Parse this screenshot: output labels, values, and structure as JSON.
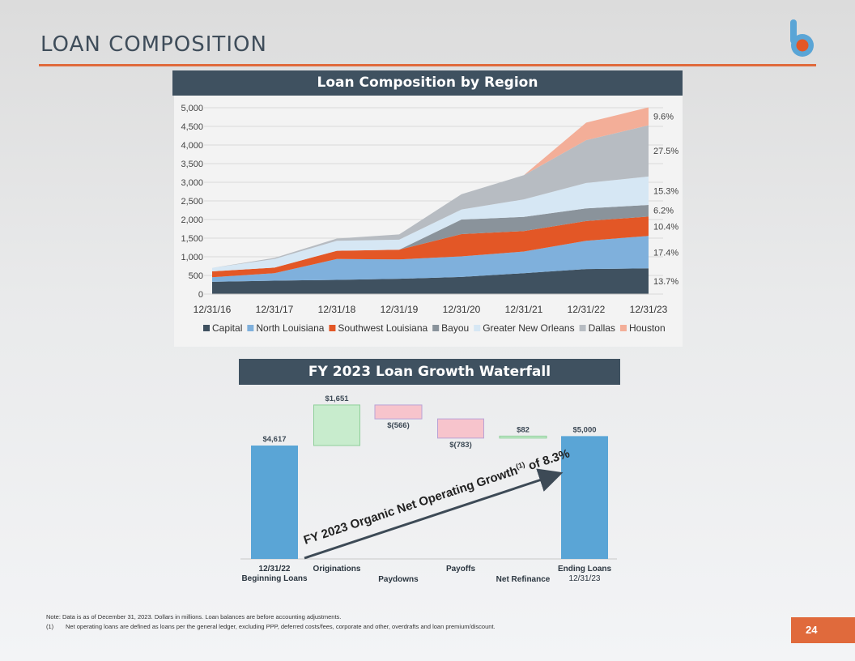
{
  "page": {
    "title": "LOAN COMPOSITION",
    "page_number": "24",
    "notes": {
      "line1": "Note: Data is as of December 31, 2023. Dollars in millions. Loan balances are before accounting adjustments.",
      "line2_marker": "(1)",
      "line2": "Net operating loans are defined as loans per the general ledger, excluding PPP, deferred costs/fees, corporate and other, overdrafts and loan premium/discount."
    }
  },
  "colors": {
    "accent": "#e06a3c",
    "header_bg": "#3f5160",
    "Capital": "#3f5160",
    "North Louisiana": "#7fb0dc",
    "Southwest Louisiana": "#e35726",
    "Bayou": "#8a939b",
    "Greater New Orleans": "#d6e7f4",
    "Dallas": "#b7bcc2",
    "Houston": "#f3ae98",
    "wf_total": "#5aa5d6",
    "wf_increase": "#c8eccd",
    "wf_decrease": "#f7c4cc",
    "arrow": "#3d4a56"
  },
  "chart_data": [
    {
      "type": "area",
      "stacked": true,
      "title": "Loan Composition by Region",
      "x": [
        "12/31/16",
        "12/31/17",
        "12/31/18",
        "12/31/19",
        "12/31/20",
        "12/31/21",
        "12/31/22",
        "12/31/23"
      ],
      "ylim": [
        0,
        5000
      ],
      "yticks": [
        "5,000",
        "4,500",
        "4,000",
        "3,500",
        "3,000",
        "2,500",
        "2,000",
        "1,500",
        "1,000",
        "500",
        "0"
      ],
      "grid": true,
      "legend_position": "bottom",
      "series": [
        {
          "name": "Capital",
          "values": [
            330,
            360,
            380,
            410,
            460,
            560,
            670,
            690
          ]
        },
        {
          "name": "North Louisiana",
          "values": [
            120,
            200,
            560,
            520,
            550,
            580,
            760,
            870
          ]
        },
        {
          "name": "Southwest Louisiana",
          "values": [
            160,
            150,
            220,
            260,
            600,
            550,
            530,
            520
          ]
        },
        {
          "name": "Bayou",
          "values": [
            0,
            0,
            0,
            0,
            390,
            380,
            340,
            310
          ]
        },
        {
          "name": "Greater New Orleans",
          "values": [
            90,
            230,
            270,
            270,
            270,
            470,
            680,
            765
          ]
        },
        {
          "name": "Dallas",
          "values": [
            0,
            30,
            60,
            140,
            410,
            650,
            1150,
            1375
          ]
        },
        {
          "name": "Houston",
          "values": [
            0,
            0,
            0,
            0,
            0,
            0,
            470,
            480
          ]
        }
      ],
      "end_labels": [
        "13.7%",
        "17.4%",
        "10.4%",
        "6.2%",
        "15.3%",
        "27.5%",
        "9.6%"
      ]
    },
    {
      "type": "waterfall",
      "title": "FY 2023 Loan Growth Waterfall",
      "ylim": [
        0,
        5400
      ],
      "steps": [
        {
          "label": "12/31/22\nBeginning Loans",
          "value": 4617,
          "kind": "total",
          "data_label": "$4,617"
        },
        {
          "label": "Originations",
          "value": 1651,
          "kind": "increase",
          "data_label": "$1,651"
        },
        {
          "label": "Paydowns",
          "value": -566,
          "kind": "decrease",
          "data_label": "$(566)"
        },
        {
          "label": "Payoffs",
          "value": -783,
          "kind": "decrease",
          "data_label": "$(783)"
        },
        {
          "label": "Net Refinance",
          "value": 82,
          "kind": "increase",
          "data_label": "$82"
        },
        {
          "label": "Ending Loans\n12/31/23",
          "value": 5000,
          "kind": "total",
          "data_label": "$5,000"
        }
      ],
      "annotation": {
        "text": "FY 2023 Organic Net Operating Growth",
        "superscript": "(1)",
        "suffix": " of 8.3%"
      }
    }
  ]
}
